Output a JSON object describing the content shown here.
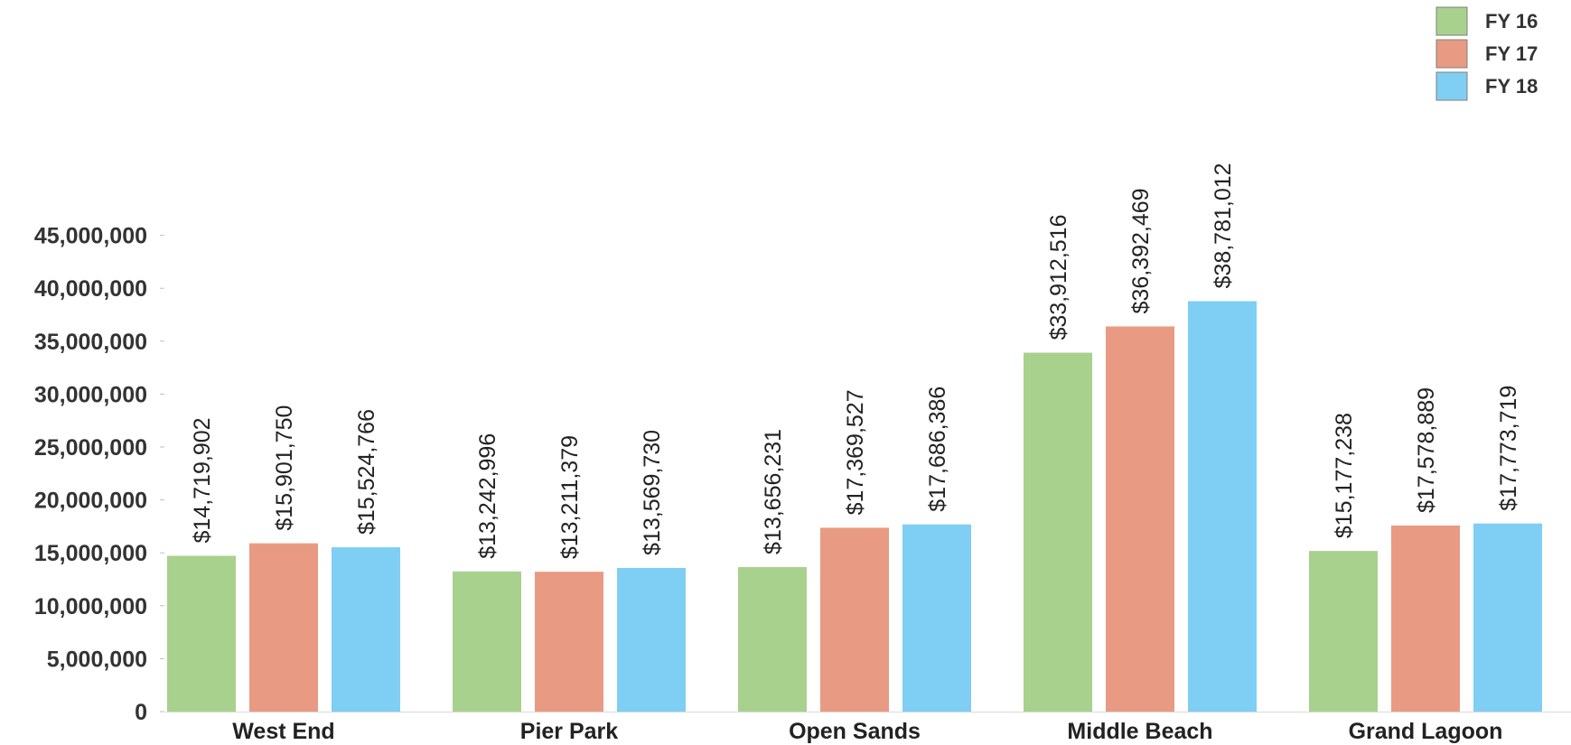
{
  "chart_data": {
    "type": "bar",
    "title": "",
    "xlabel": "",
    "ylabel": "",
    "categories": [
      "West End",
      "Pier Park",
      "Open Sands",
      "Middle Beach",
      "Grand Lagoon"
    ],
    "series": [
      {
        "name": "FY 16",
        "color": "#a9d18e",
        "values": [
          14719902,
          13242996,
          13656231,
          33912516,
          15177238
        ],
        "labels": [
          "$14,719,902",
          "$13,242,996",
          "$13,656,231",
          "$33,912,516",
          "$15,177,238"
        ]
      },
      {
        "name": "FY 17",
        "color": "#e99a83",
        "values": [
          15901750,
          13211379,
          17369527,
          36392469,
          17578889
        ],
        "labels": [
          "$15,901,750",
          "$13,211,379",
          "$17,369,527",
          "$36,392,469",
          "$17,578,889"
        ]
      },
      {
        "name": "FY 18",
        "color": "#7fcef3",
        "values": [
          15524766,
          13569730,
          17686386,
          38781012,
          17773719
        ],
        "labels": [
          "$15,524,766",
          "$13,569,730",
          "$17,686,386",
          "$38,781,012",
          "$17,773,719"
        ]
      }
    ],
    "ylim": [
      0,
      45000000
    ],
    "yticks": [
      0,
      5000000,
      10000000,
      15000000,
      20000000,
      25000000,
      30000000,
      35000000,
      40000000,
      45000000
    ],
    "ytick_labels": [
      "0",
      "5,000,000",
      "10,000,000",
      "15,000,000",
      "20,000,000",
      "25,000,000",
      "30,000,000",
      "35,000,000",
      "40,000,000",
      "45,000,000"
    ],
    "grid": false,
    "legend": "top-right"
  }
}
